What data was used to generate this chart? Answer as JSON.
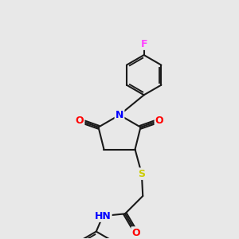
{
  "bg_color": "#e8e8e8",
  "bond_color": "#1a1a1a",
  "bond_width": 1.5,
  "atom_colors": {
    "N": "#0000ff",
    "O": "#ff0000",
    "S": "#cccc00",
    "F": "#ff44ff",
    "H": "#44aaaa",
    "C": "#1a1a1a"
  },
  "font_size": 9,
  "label_font_size": 8
}
